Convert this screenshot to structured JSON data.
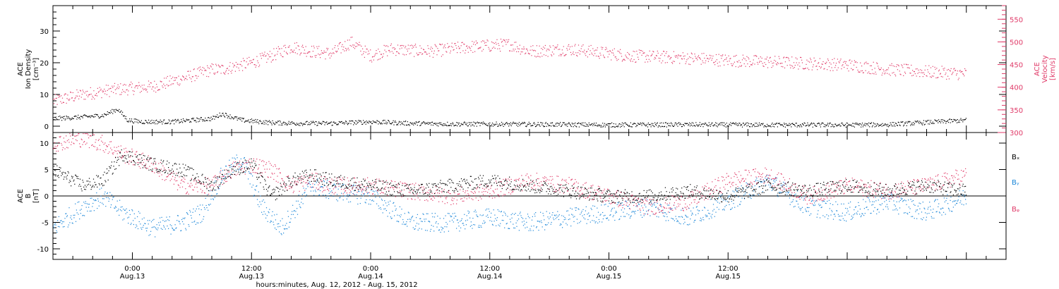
{
  "chart_data": [
    {
      "type": "scatter",
      "ylabel_left": [
        "ACE",
        "Ion Density",
        "[cm⁻³]"
      ],
      "ylabel_right": [
        "ACE",
        "Velocity",
        "[km/s]"
      ],
      "left_axis": {
        "ylim": [
          -2,
          38
        ],
        "ticks": [
          0,
          10,
          20,
          30
        ]
      },
      "right_axis": {
        "ylim": [
          300,
          580
        ],
        "ticks": [
          300,
          350,
          400,
          450,
          500,
          550
        ],
        "color": "#e03a68"
      },
      "x_range_hours": [
        -8,
        88
      ],
      "series": [
        {
          "name": "",
          "axis": "left",
          "color": "#000000",
          "keypoints_hours": [
            -8,
            -5,
            -3,
            -1.5,
            -0.5,
            1,
            4,
            8,
            9,
            11,
            14,
            17,
            20,
            24,
            28,
            32,
            40,
            48,
            56,
            64,
            72,
            76,
            84
          ],
          "values": [
            2.5,
            3.0,
            3.5,
            5.5,
            2.0,
            1.5,
            1.5,
            2.5,
            4.0,
            2.0,
            1.2,
            1.0,
            1.0,
            1.5,
            1.0,
            0.8,
            0.7,
            0.5,
            0.6,
            0.5,
            0.5,
            0.6,
            2.0
          ]
        },
        {
          "name": "",
          "axis": "right",
          "color": "#e03a68",
          "keypoints_hours": [
            -8,
            -5,
            -2,
            2,
            5,
            8,
            9,
            12,
            14,
            16,
            18,
            20,
            22,
            24,
            26,
            30,
            34,
            38,
            40,
            44,
            50,
            56,
            60,
            66,
            72,
            76,
            80,
            84
          ],
          "values": [
            370,
            385,
            395,
            402,
            420,
            440,
            440,
            455,
            470,
            490,
            480,
            475,
            500,
            470,
            485,
            480,
            490,
            495,
            480,
            485,
            470,
            465,
            460,
            455,
            450,
            440,
            435,
            430
          ]
        }
      ]
    },
    {
      "type": "scatter",
      "ylabel_left": [
        "ACE",
        "B",
        "[nT]"
      ],
      "ylim": [
        -12,
        12
      ],
      "ticks": [
        -10,
        -5,
        0,
        5,
        10
      ],
      "x_range_hours": [
        -8,
        88
      ],
      "legend": [
        {
          "label": "Bₓ",
          "color": "#000000"
        },
        {
          "label": "Bᵧ",
          "color": "#1a86d8"
        },
        {
          "label": "Bᵩ",
          "color": "#e03a68"
        }
      ],
      "series": [
        {
          "name": "Bₓ",
          "color": "#000000",
          "keypoints_hours": [
            -8,
            -5,
            -3,
            -1,
            2,
            5,
            8,
            10,
            12,
            14,
            16,
            18,
            20,
            24,
            28,
            32,
            36,
            40,
            44,
            48,
            52,
            56,
            60,
            64,
            68,
            72,
            76,
            80,
            84
          ],
          "values": [
            5,
            2,
            3,
            8,
            6,
            5,
            2,
            5,
            6,
            0,
            3,
            4,
            3,
            2,
            1,
            2,
            3,
            2,
            1,
            0,
            0,
            1,
            0,
            2,
            1,
            2,
            1,
            2,
            1
          ]
        },
        {
          "name": "Bᵧ",
          "color": "#1a86d8",
          "keypoints_hours": [
            -8,
            -5,
            -3,
            -1,
            2,
            5,
            7,
            9,
            11,
            13,
            15,
            18,
            20,
            24,
            28,
            32,
            36,
            40,
            44,
            48,
            52,
            56,
            60,
            64,
            68,
            72,
            76,
            80,
            84
          ],
          "values": [
            -6,
            -2,
            0,
            -3,
            -6,
            -5,
            -3,
            4,
            7,
            -2,
            -6,
            2,
            1,
            0,
            -5,
            -5,
            -4,
            -5,
            -4,
            -3,
            -2,
            -4,
            -1,
            3,
            -2,
            -3,
            -1,
            -3,
            0
          ]
        },
        {
          "name": "Bᵩ",
          "color": "#e03a68",
          "keypoints_hours": [
            -8,
            -5,
            -3,
            -1,
            2,
            5,
            8,
            10,
            12,
            14,
            16,
            18,
            20,
            24,
            28,
            32,
            36,
            40,
            44,
            48,
            52,
            56,
            60,
            64,
            68,
            72,
            76,
            80,
            84
          ],
          "values": [
            10,
            11,
            10,
            8,
            6,
            2,
            2,
            5,
            6,
            5,
            2,
            3,
            2,
            2,
            1,
            0,
            1,
            3,
            2,
            0,
            -2,
            -1,
            3,
            4,
            0,
            2,
            1,
            2,
            4
          ]
        }
      ]
    }
  ],
  "x_axis": {
    "tick_labels": [
      {
        "time": "0:00",
        "date": "Aug.13",
        "hour": 0
      },
      {
        "time": "12:00",
        "date": "Aug.13",
        "hour": 12
      },
      {
        "time": "0:00",
        "date": "Aug.14",
        "hour": 24
      },
      {
        "time": "12:00",
        "date": "Aug.14",
        "hour": 36
      },
      {
        "time": "0:00",
        "date": "Aug.15",
        "hour": 48
      },
      {
        "time": "12:00",
        "date": "Aug.15",
        "hour": 60
      }
    ],
    "title": "hours:minutes, Aug. 12, 2012 - Aug. 15, 2012"
  }
}
